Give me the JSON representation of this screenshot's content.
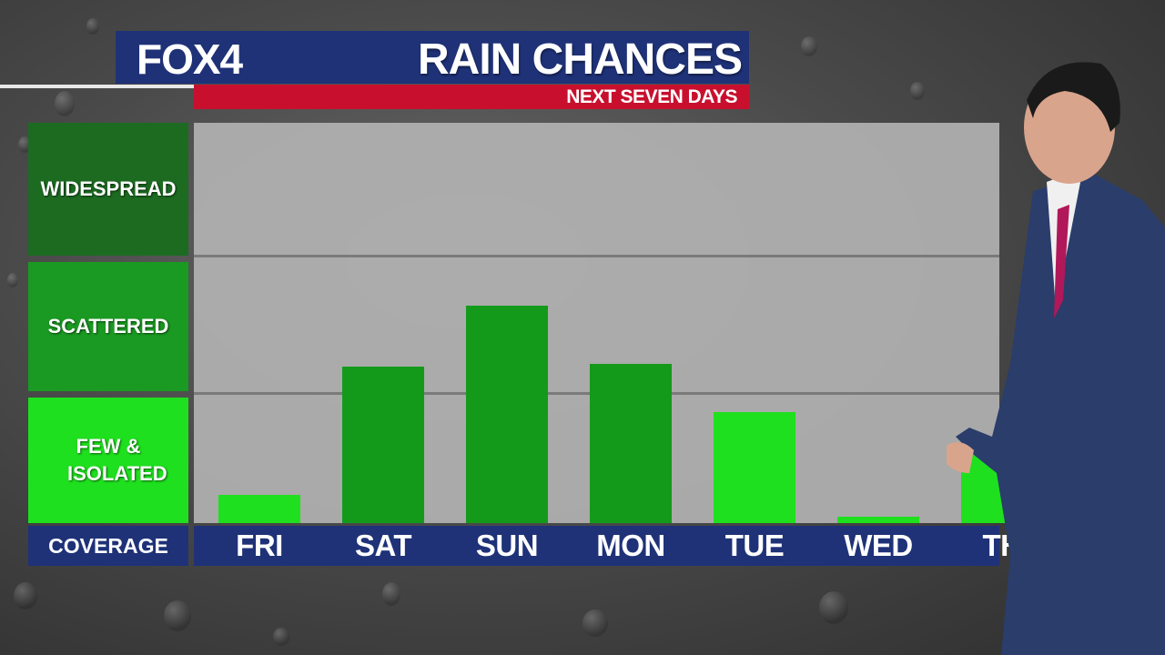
{
  "header": {
    "logo": "FOX4",
    "title": "RAIN CHANCES",
    "subtitle": "NEXT SEVEN DAYS"
  },
  "levels": {
    "widespread": "WIDESPREAD",
    "scattered": "SCATTERED",
    "few_isolated": "FEW & ISOLATED",
    "coverage": "COVERAGE"
  },
  "colors": {
    "navy": "#1f3278",
    "red": "#c8102e",
    "widespread_green": "#1c6b21",
    "scattered_green": "#1a9a22",
    "few_green": "#1ee01e"
  },
  "chart_data": {
    "type": "bar",
    "title": "RAIN CHANCES",
    "subtitle": "NEXT SEVEN DAYS",
    "categories": [
      "FRI",
      "SAT",
      "SUN",
      "MON",
      "TUE",
      "WED",
      "TH"
    ],
    "values": [
      0.21,
      1.17,
      1.63,
      1.19,
      0.83,
      0.05,
      0.62
    ],
    "ylim": [
      0,
      3
    ],
    "y_categories": [
      "FEW & ISOLATED",
      "SCATTERED",
      "WIDESPREAD"
    ],
    "bar_colors": [
      "#1ee01e",
      "#139a1b",
      "#139a1b",
      "#139a1b",
      "#1ee01e",
      "#1ee01e",
      "#1ee01e"
    ],
    "xlabel": "COVERAGE",
    "grid": true
  }
}
